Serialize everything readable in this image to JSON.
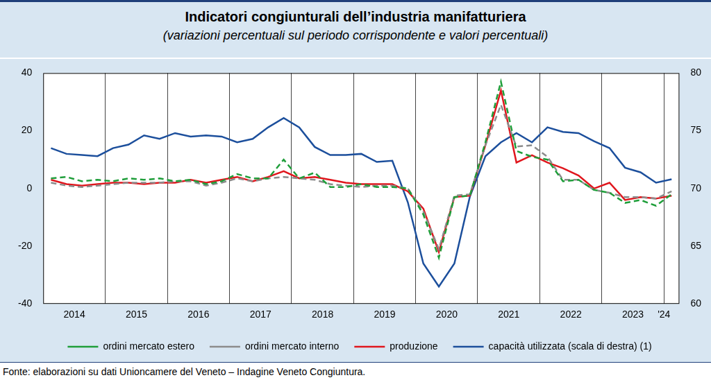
{
  "chart_data": {
    "type": "line",
    "title": "Indicatori congiunturali dell’industria manifatturiera",
    "subtitle": "(variazioni percentuali sul periodo corrispondente e valori percentuali)",
    "source": "Fonte: elaborazioni su dati Unioncamere del Veneto – Indagine Veneto Congiuntura.",
    "categories": [
      null,
      null,
      "2014",
      null,
      null,
      null,
      "2015",
      null,
      null,
      null,
      "2016",
      null,
      null,
      null,
      "2017",
      null,
      null,
      null,
      "2018",
      null,
      null,
      null,
      "2019",
      null,
      null,
      null,
      "2020",
      null,
      null,
      null,
      "2021",
      null,
      null,
      null,
      "2022",
      null,
      null,
      null,
      "2023",
      null,
      "'24"
    ],
    "series": [
      {
        "name": "produzione",
        "color": "#e0161d",
        "line_style": "solid",
        "values": [
          3,
          1.5,
          1,
          1.5,
          2,
          2,
          1.5,
          2,
          2,
          3,
          2,
          3,
          4,
          2.5,
          4,
          6,
          3.5,
          4,
          3,
          2,
          1.5,
          1.5,
          1.5,
          -1,
          -7,
          -22,
          -3,
          -2.5,
          15,
          34,
          9,
          11.5,
          9,
          7,
          4.5,
          0,
          2,
          -4,
          -3,
          -3.5,
          -2.5
        ]
      },
      {
        "name": "ordini mercato interno",
        "color": "#8c8c8c",
        "line_style": "dashed",
        "values": [
          2,
          1,
          0.5,
          1,
          1.5,
          2,
          2,
          2,
          2.5,
          2.5,
          1,
          2,
          3.5,
          2.5,
          3.5,
          4,
          3.5,
          3,
          1.5,
          1,
          0.5,
          1,
          1,
          0,
          -8,
          -21,
          -2.5,
          -2,
          15,
          29,
          14.5,
          15,
          11,
          3,
          3,
          -0.5,
          -1.5,
          -3,
          -3,
          -3.5,
          -1
        ]
      },
      {
        "name": "ordini mercato estero",
        "color": "#1f9e3a",
        "line_style": "dashed",
        "values": [
          3.5,
          4,
          2.5,
          3,
          2.5,
          3.5,
          3,
          3.5,
          2.5,
          3,
          1.5,
          2.5,
          5,
          3.5,
          3.5,
          10,
          3.5,
          5.5,
          0.5,
          0.5,
          1.5,
          0.5,
          0.5,
          0,
          -9,
          -24,
          -3,
          -2.5,
          16,
          37,
          13,
          11,
          10,
          2.5,
          3,
          -0.5,
          -1.5,
          -5,
          -4,
          -6,
          -2
        ]
      },
      {
        "name": "capacità utilizzata (scala di destra) (1)",
        "color": "#1c4f9c",
        "line_style": "solid",
        "axis": "y2",
        "values": [
          73.5,
          73,
          72.9,
          72.8,
          73.5,
          73.8,
          74.6,
          74.3,
          74.8,
          74.5,
          74.6,
          74.5,
          74,
          74.3,
          75.3,
          76.1,
          75.3,
          73.6,
          72.9,
          72.9,
          73,
          72.3,
          72.4,
          68.8,
          63.5,
          61.5,
          63.5,
          69.3,
          72.8,
          74,
          74.8,
          74,
          75.3,
          74.9,
          74.8,
          74.1,
          73.5,
          71.8,
          71.4,
          70.5,
          70.8
        ]
      }
    ],
    "ylim": [
      -40,
      40
    ],
    "yticks": [
      -40,
      -20,
      0,
      20,
      40
    ],
    "y2lim": [
      60,
      80
    ],
    "y2ticks": [
      60,
      65,
      70,
      75,
      80
    ],
    "grid": true,
    "legend": "bottom"
  }
}
